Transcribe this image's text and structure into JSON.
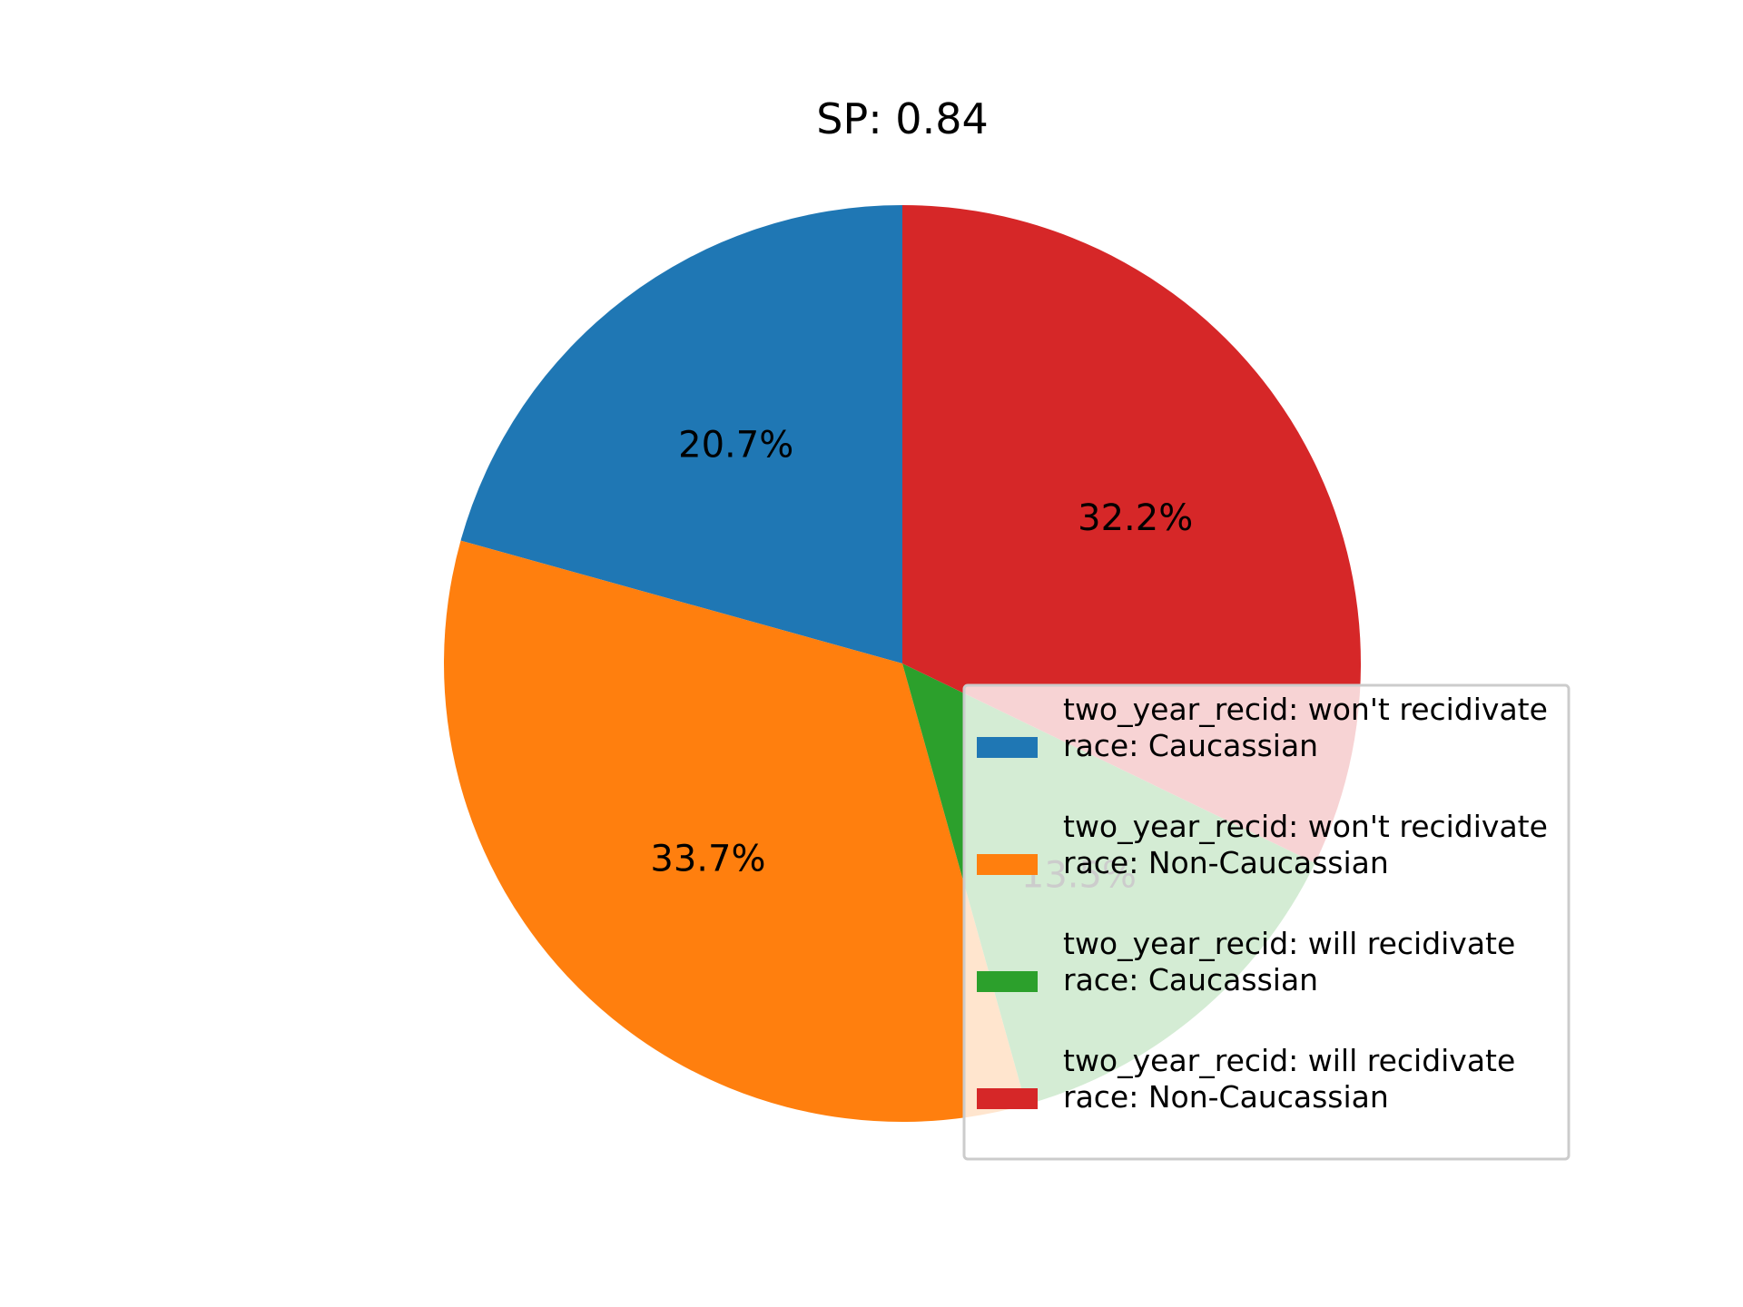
{
  "chart_data": {
    "type": "pie",
    "title": "SP: 0.84",
    "start_angle_deg": 90,
    "direction": "counterclockwise",
    "slices": [
      {
        "line1": "two_year_recid: won't recidivate",
        "line2": "race: Caucassian",
        "value": 20.7,
        "label": "20.7%",
        "color": "#1f77b4"
      },
      {
        "line1": "two_year_recid: won't recidivate",
        "line2": "race: Non-Caucassian",
        "value": 33.7,
        "label": "33.7%",
        "color": "#ff7f0e"
      },
      {
        "line1": "two_year_recid: will recidivate",
        "line2": "race: Caucassian",
        "value": 13.5,
        "label": "13.5%",
        "color": "#2ca02c"
      },
      {
        "line1": "two_year_recid: will recidivate",
        "line2": "race: Non-Caucassian",
        "value": 32.2,
        "label": "32.2%",
        "color": "#d62728"
      }
    ],
    "legend": {
      "placement": "lower-right",
      "frame": true
    }
  }
}
